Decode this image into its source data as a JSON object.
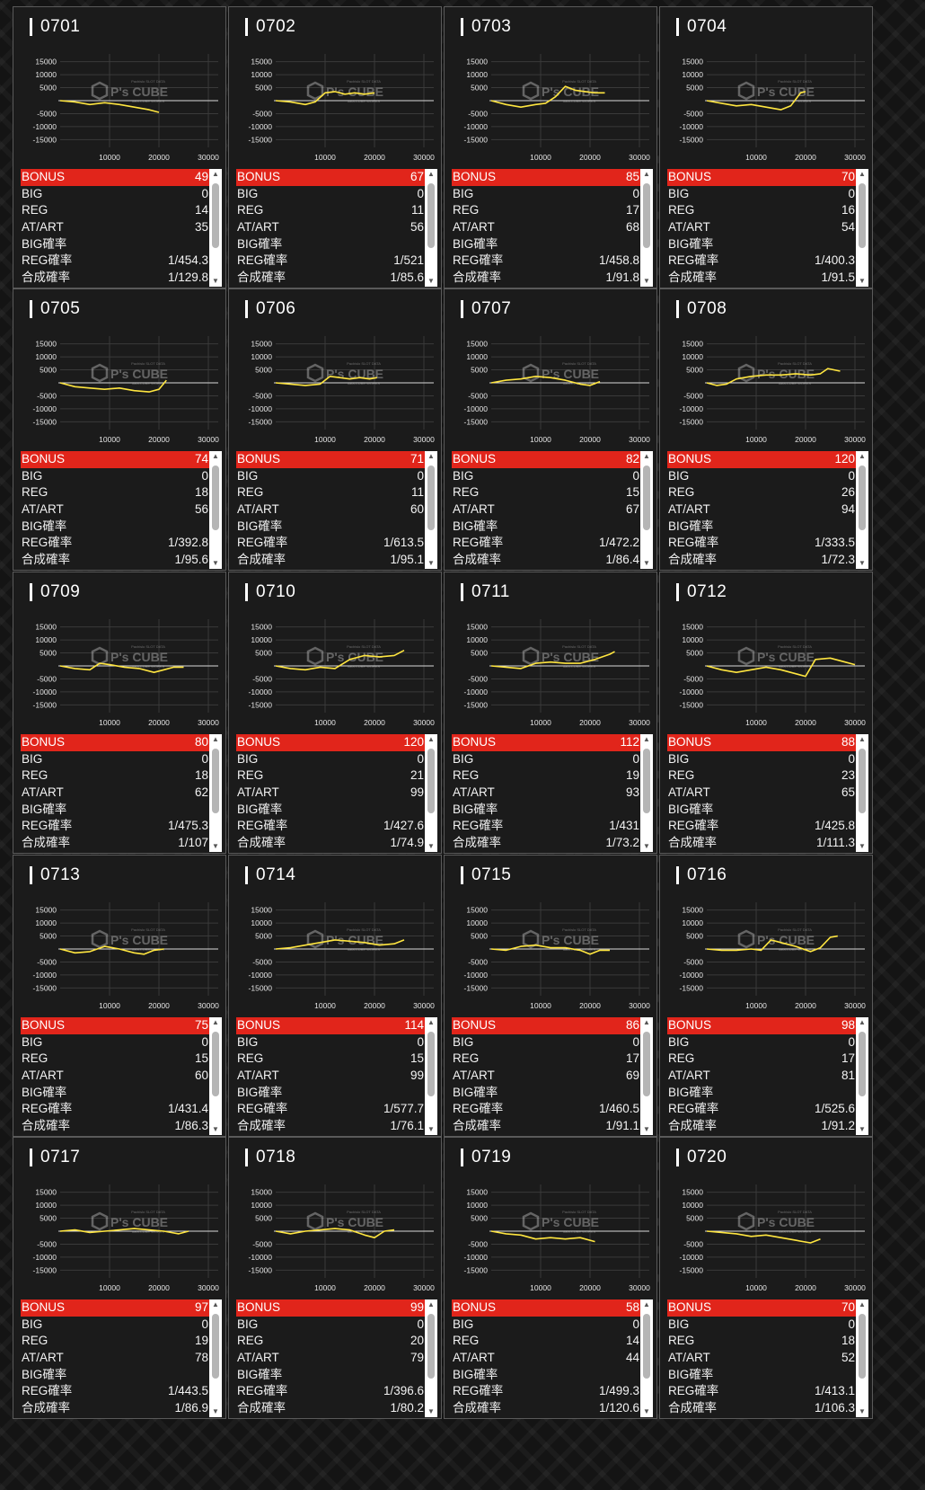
{
  "labels": {
    "bonus": "BONUS",
    "big": "BIG",
    "reg": "REG",
    "atart": "AT/ART",
    "big_prob": "BIG確率",
    "reg_prob": "REG確率",
    "total_prob": "合成確率"
  },
  "watermark": {
    "brand": "P's CUBE",
    "top_line": "Pachislo SLOT DATA",
    "bottom_line": "data-CUBE WORKS"
  },
  "icons": {
    "scroll_up": "triangle-up-icon",
    "scroll_down": "triangle-down-icon"
  },
  "colors": {
    "bonus_bar": "#e1251b",
    "graph_line": "#ffe640",
    "card_bg": "#1b1b1b"
  },
  "chart_axes": {
    "y_ticks": [
      15000,
      10000,
      5000,
      -5000,
      -10000,
      -15000
    ],
    "y_tick_labels": [
      "15000",
      "10000",
      "5000",
      "-5000",
      "-10000",
      "-15000"
    ],
    "x_ticks": [
      10000,
      20000,
      30000
    ],
    "x_tick_labels": [
      "10000",
      "20000",
      "30000"
    ],
    "ylim": [
      -18000,
      18000
    ],
    "xlim": [
      0,
      32000
    ]
  },
  "machines": [
    {
      "id": "0701",
      "bonus": "49",
      "big": "0",
      "reg": "14",
      "atart": "35",
      "big_prob": "",
      "reg_prob": "1/454.3",
      "total_prob": "1/129.8",
      "chart_data": {
        "type": "line",
        "x": [
          0,
          3000,
          6000,
          9000,
          12000,
          15000,
          18000,
          20000
        ],
        "y": [
          0,
          -500,
          -1500,
          -800,
          -1500,
          -2500,
          -3500,
          -4500
        ]
      }
    },
    {
      "id": "0702",
      "bonus": "67",
      "big": "0",
      "reg": "11",
      "atart": "56",
      "big_prob": "",
      "reg_prob": "1/521",
      "total_prob": "1/85.6",
      "chart_data": {
        "type": "line",
        "x": [
          0,
          3000,
          6000,
          8000,
          10000,
          12000,
          14000,
          16000,
          18000,
          20000
        ],
        "y": [
          0,
          -500,
          -1500,
          -500,
          3000,
          3500,
          2500,
          3000,
          2500,
          3000
        ]
      }
    },
    {
      "id": "0703",
      "bonus": "85",
      "big": "0",
      "reg": "17",
      "atart": "68",
      "big_prob": "",
      "reg_prob": "1/458.8",
      "total_prob": "1/91.8",
      "chart_data": {
        "type": "line",
        "x": [
          0,
          3000,
          6000,
          9000,
          11000,
          13000,
          15000,
          17000,
          19000,
          21000,
          23000
        ],
        "y": [
          0,
          -1500,
          -2500,
          -1500,
          -1000,
          1500,
          5500,
          4000,
          3500,
          3000,
          3000
        ]
      }
    },
    {
      "id": "0704",
      "bonus": "70",
      "big": "0",
      "reg": "16",
      "atart": "54",
      "big_prob": "",
      "reg_prob": "1/400.3",
      "total_prob": "1/91.5",
      "chart_data": {
        "type": "line",
        "x": [
          0,
          3000,
          6000,
          9000,
          12000,
          15000,
          17000,
          19000,
          20000
        ],
        "y": [
          0,
          -1000,
          -2000,
          -1500,
          -2500,
          -3500,
          -2000,
          3000,
          3500
        ]
      }
    },
    {
      "id": "0705",
      "bonus": "74",
      "big": "0",
      "reg": "18",
      "atart": "56",
      "big_prob": "",
      "reg_prob": "1/392.8",
      "total_prob": "1/95.6",
      "chart_data": {
        "type": "line",
        "x": [
          0,
          3000,
          6000,
          9000,
          12000,
          15000,
          18000,
          20000,
          21500
        ],
        "y": [
          0,
          -1500,
          -2000,
          -2500,
          -2000,
          -3000,
          -3500,
          -2500,
          1000
        ]
      }
    },
    {
      "id": "0706",
      "bonus": "71",
      "big": "0",
      "reg": "11",
      "atart": "60",
      "big_prob": "",
      "reg_prob": "1/613.5",
      "total_prob": "1/95.1",
      "chart_data": {
        "type": "line",
        "x": [
          0,
          3000,
          6000,
          9000,
          11000,
          13000,
          15000,
          17000,
          19000,
          20500
        ],
        "y": [
          0,
          -500,
          -1000,
          -500,
          2500,
          2000,
          1500,
          2000,
          1500,
          2000
        ]
      }
    },
    {
      "id": "0707",
      "bonus": "82",
      "big": "0",
      "reg": "15",
      "atart": "67",
      "big_prob": "",
      "reg_prob": "1/472.2",
      "total_prob": "1/86.4",
      "chart_data": {
        "type": "line",
        "x": [
          0,
          3000,
          6000,
          9000,
          12000,
          15000,
          18000,
          20000,
          22000
        ],
        "y": [
          0,
          1000,
          1500,
          2500,
          2000,
          1000,
          -500,
          -1000,
          500
        ]
      }
    },
    {
      "id": "0708",
      "bonus": "120",
      "big": "0",
      "reg": "26",
      "atart": "94",
      "big_prob": "",
      "reg_prob": "1/333.5",
      "total_prob": "1/72.3",
      "chart_data": {
        "type": "line",
        "x": [
          0,
          2000,
          4000,
          6000,
          9000,
          12000,
          15000,
          18000,
          21000,
          23000,
          24500,
          27000
        ],
        "y": [
          0,
          -1000,
          -500,
          1500,
          2500,
          3000,
          3000,
          3500,
          3000,
          3500,
          5500,
          4500
        ]
      }
    },
    {
      "id": "0709",
      "bonus": "80",
      "big": "0",
      "reg": "18",
      "atart": "62",
      "big_prob": "",
      "reg_prob": "1/475.3",
      "total_prob": "1/107",
      "chart_data": {
        "type": "line",
        "x": [
          0,
          3000,
          6000,
          8000,
          10000,
          13000,
          16000,
          19000,
          21000,
          23000,
          25000
        ],
        "y": [
          0,
          -1000,
          -1500,
          1000,
          500,
          -500,
          -1000,
          -2500,
          -1500,
          -500,
          -500
        ]
      }
    },
    {
      "id": "0710",
      "bonus": "120",
      "big": "0",
      "reg": "21",
      "atart": "99",
      "big_prob": "",
      "reg_prob": "1/427.6",
      "total_prob": "1/74.9",
      "chart_data": {
        "type": "line",
        "x": [
          0,
          3000,
          6000,
          9000,
          12000,
          15000,
          18000,
          21000,
          24000,
          26000
        ],
        "y": [
          0,
          -1000,
          -1500,
          -500,
          -1000,
          2500,
          4000,
          3500,
          4000,
          6000
        ]
      }
    },
    {
      "id": "0711",
      "bonus": "112",
      "big": "0",
      "reg": "19",
      "atart": "93",
      "big_prob": "",
      "reg_prob": "1/431",
      "total_prob": "1/73.2",
      "chart_data": {
        "type": "line",
        "x": [
          0,
          3000,
          6000,
          9000,
          12000,
          15000,
          18000,
          21000,
          24000,
          25000
        ],
        "y": [
          0,
          -500,
          -1000,
          1000,
          1500,
          1000,
          1000,
          2500,
          4500,
          5500
        ]
      }
    },
    {
      "id": "0712",
      "bonus": "88",
      "big": "0",
      "reg": "23",
      "atart": "65",
      "big_prob": "",
      "reg_prob": "1/425.8",
      "total_prob": "1/111.3",
      "chart_data": {
        "type": "line",
        "x": [
          0,
          3000,
          6000,
          9000,
          12000,
          15000,
          18000,
          20000,
          22000,
          25000,
          28000,
          30000
        ],
        "y": [
          0,
          -1500,
          -2500,
          -1500,
          -500,
          -1500,
          -3000,
          -4000,
          2500,
          3000,
          1500,
          500
        ]
      }
    },
    {
      "id": "0713",
      "bonus": "75",
      "big": "0",
      "reg": "15",
      "atart": "60",
      "big_prob": "",
      "reg_prob": "1/431.4",
      "total_prob": "1/86.3",
      "chart_data": {
        "type": "line",
        "x": [
          0,
          3000,
          6000,
          9000,
          12000,
          15000,
          17000,
          19000,
          21000
        ],
        "y": [
          0,
          -1500,
          -1000,
          1000,
          0,
          -1500,
          -2000,
          -500,
          0
        ]
      }
    },
    {
      "id": "0714",
      "bonus": "114",
      "big": "0",
      "reg": "15",
      "atart": "99",
      "big_prob": "",
      "reg_prob": "1/577.7",
      "total_prob": "1/76.1",
      "chart_data": {
        "type": "line",
        "x": [
          0,
          3000,
          6000,
          9000,
          12000,
          15000,
          18000,
          21000,
          24000,
          26000
        ],
        "y": [
          0,
          500,
          1500,
          2500,
          3500,
          3000,
          2500,
          1500,
          2000,
          3500
        ]
      }
    },
    {
      "id": "0715",
      "bonus": "86",
      "big": "0",
      "reg": "17",
      "atart": "69",
      "big_prob": "",
      "reg_prob": "1/460.5",
      "total_prob": "1/91.1",
      "chart_data": {
        "type": "line",
        "x": [
          0,
          3000,
          6000,
          9000,
          12000,
          15000,
          18000,
          20000,
          22000,
          24000
        ],
        "y": [
          0,
          -500,
          1000,
          1500,
          500,
          500,
          -500,
          -2000,
          -500,
          -500
        ]
      }
    },
    {
      "id": "0716",
      "bonus": "98",
      "big": "0",
      "reg": "17",
      "atart": "81",
      "big_prob": "",
      "reg_prob": "1/525.6",
      "total_prob": "1/91.2",
      "chart_data": {
        "type": "line",
        "x": [
          0,
          3000,
          6000,
          9000,
          11000,
          13000,
          15000,
          18000,
          21000,
          23000,
          25000,
          26500
        ],
        "y": [
          0,
          -500,
          -500,
          0,
          -500,
          3500,
          2500,
          1000,
          -1000,
          500,
          4500,
          5000
        ]
      }
    },
    {
      "id": "0717",
      "bonus": "97",
      "big": "0",
      "reg": "19",
      "atart": "78",
      "big_prob": "",
      "reg_prob": "1/443.5",
      "total_prob": "1/86.9",
      "chart_data": {
        "type": "line",
        "x": [
          0,
          3000,
          6000,
          9000,
          12000,
          15000,
          18000,
          21000,
          24000,
          26000
        ],
        "y": [
          0,
          500,
          -500,
          0,
          500,
          1000,
          500,
          0,
          -1000,
          0
        ]
      }
    },
    {
      "id": "0718",
      "bonus": "99",
      "big": "0",
      "reg": "20",
      "atart": "79",
      "big_prob": "",
      "reg_prob": "1/396.6",
      "total_prob": "1/80.2",
      "chart_data": {
        "type": "line",
        "x": [
          0,
          3000,
          6000,
          9000,
          12000,
          15000,
          18000,
          20000,
          22000,
          24000
        ],
        "y": [
          0,
          -1000,
          0,
          500,
          1000,
          500,
          -1500,
          -2500,
          0,
          500
        ]
      }
    },
    {
      "id": "0719",
      "bonus": "58",
      "big": "0",
      "reg": "14",
      "atart": "44",
      "big_prob": "",
      "reg_prob": "1/499.3",
      "total_prob": "1/120.6",
      "chart_data": {
        "type": "line",
        "x": [
          0,
          3000,
          6000,
          9000,
          12000,
          15000,
          18000,
          21000
        ],
        "y": [
          0,
          -1000,
          -1500,
          -3000,
          -2500,
          -3000,
          -2500,
          -4000
        ]
      }
    },
    {
      "id": "0720",
      "bonus": "70",
      "big": "0",
      "reg": "18",
      "atart": "52",
      "big_prob": "",
      "reg_prob": "1/413.1",
      "total_prob": "1/106.3",
      "chart_data": {
        "type": "line",
        "x": [
          0,
          3000,
          6000,
          9000,
          12000,
          15000,
          18000,
          21000,
          23000
        ],
        "y": [
          0,
          -500,
          -1000,
          -2000,
          -1500,
          -2500,
          -3500,
          -4500,
          -3000
        ]
      }
    }
  ]
}
